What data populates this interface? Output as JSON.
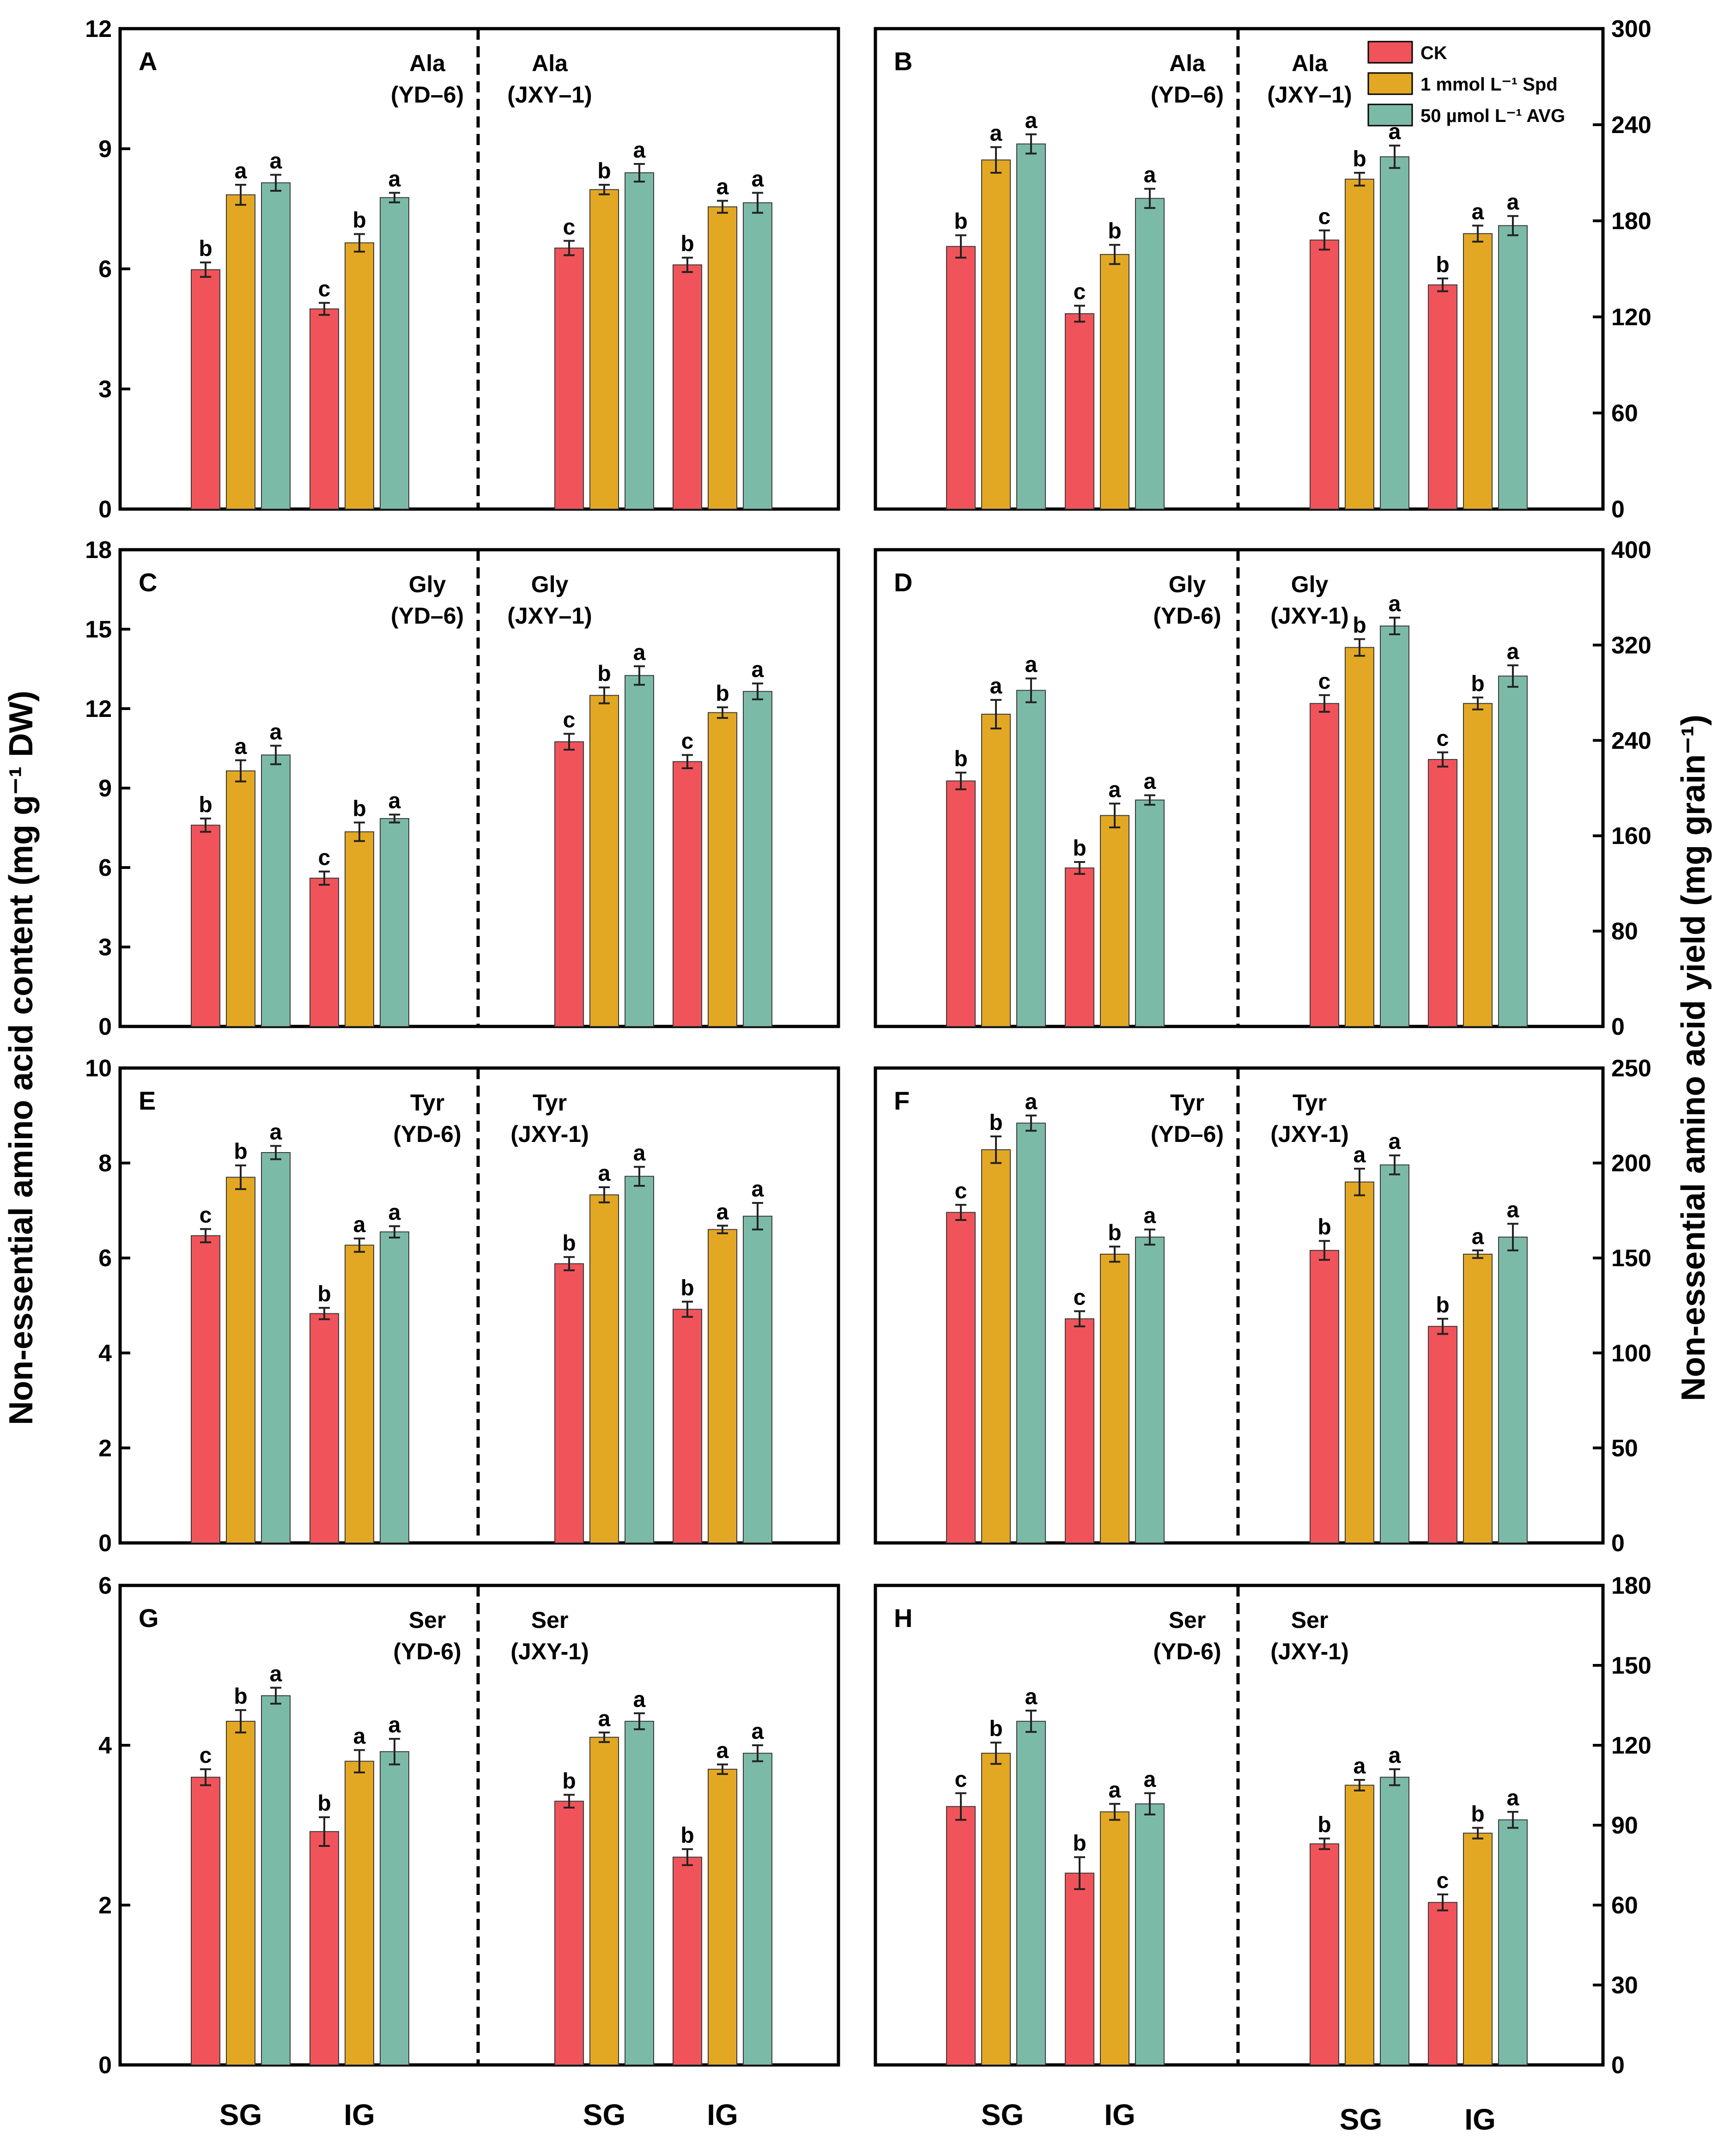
{
  "figure": {
    "ylabel_left": "Non-essential amino acid content (mg g⁻¹ DW)",
    "ylabel_right": "Non-essential amino acid yield (mg grain⁻¹)",
    "group_labels": [
      "SG",
      "IG"
    ]
  },
  "legend": {
    "entries": [
      {
        "label": "CK",
        "color": "#F0545A"
      },
      {
        "label": "1 mmol L⁻¹ Spd",
        "color": "#E3A823"
      },
      {
        "label": "50 µmol L⁻¹ AVG",
        "color": "#7CBAA8"
      }
    ]
  },
  "chart_data": [
    {
      "type": "bar",
      "panel": "A",
      "axis_side": "left",
      "ylim": [
        0,
        12
      ],
      "yticks": [
        "0",
        "3",
        "6",
        "9",
        "12"
      ],
      "halves": [
        {
          "annotation_line1": "Ala",
          "annotation_line2": "(YD–6)",
          "groups": [
            {
              "name": "SG",
              "values": [
                5.98,
                7.85,
                8.15
              ],
              "errors": [
                0.18,
                0.25,
                0.2
              ],
              "sig": [
                "b",
                "a",
                "a"
              ]
            },
            {
              "name": "IG",
              "values": [
                5.0,
                6.65,
                7.78
              ],
              "errors": [
                0.15,
                0.22,
                0.12
              ],
              "sig": [
                "c",
                "b",
                "a"
              ]
            }
          ]
        },
        {
          "annotation_line1": "Ala",
          "annotation_line2": "(JXY–1)",
          "groups": [
            {
              "name": "SG",
              "values": [
                6.52,
                7.98,
                8.4
              ],
              "errors": [
                0.18,
                0.12,
                0.22
              ],
              "sig": [
                "c",
                "b",
                "a"
              ]
            },
            {
              "name": "IG",
              "values": [
                6.1,
                7.55,
                7.65
              ],
              "errors": [
                0.18,
                0.15,
                0.25
              ],
              "sig": [
                "b",
                "a",
                "a"
              ]
            }
          ]
        }
      ]
    },
    {
      "type": "bar",
      "panel": "B",
      "axis_side": "right",
      "ylim": [
        0,
        300
      ],
      "yticks": [
        "0",
        "60",
        "120",
        "180",
        "240",
        "300"
      ],
      "halves": [
        {
          "annotation_line1": "Ala",
          "annotation_line2": "(YD–6)",
          "groups": [
            {
              "name": "SG",
              "values": [
                164,
                218,
                228
              ],
              "errors": [
                7,
                8,
                6
              ],
              "sig": [
                "b",
                "a",
                "a"
              ]
            },
            {
              "name": "IG",
              "values": [
                122,
                159,
                194
              ],
              "errors": [
                5,
                6,
                6
              ],
              "sig": [
                "c",
                "b",
                "a"
              ]
            }
          ]
        },
        {
          "annotation_line1": "Ala",
          "annotation_line2": "(JXY–1)",
          "groups": [
            {
              "name": "SG",
              "values": [
                168,
                206,
                220
              ],
              "errors": [
                6,
                4,
                7
              ],
              "sig": [
                "c",
                "b",
                "a"
              ]
            },
            {
              "name": "IG",
              "values": [
                140,
                172,
                177
              ],
              "errors": [
                4,
                5,
                6
              ],
              "sig": [
                "b",
                "a",
                "a"
              ]
            }
          ]
        }
      ]
    },
    {
      "type": "bar",
      "panel": "C",
      "axis_side": "left",
      "ylim": [
        0,
        18
      ],
      "yticks": [
        "0",
        "3",
        "6",
        "9",
        "12",
        "15",
        "18"
      ],
      "halves": [
        {
          "annotation_line1": "Gly",
          "annotation_line2": "(YD–6)",
          "groups": [
            {
              "name": "SG",
              "values": [
                7.6,
                9.65,
                10.25
              ],
              "errors": [
                0.25,
                0.4,
                0.35
              ],
              "sig": [
                "b",
                "a",
                "a"
              ]
            },
            {
              "name": "IG",
              "values": [
                5.6,
                7.35,
                7.85
              ],
              "errors": [
                0.25,
                0.35,
                0.15
              ],
              "sig": [
                "c",
                "b",
                "a"
              ]
            }
          ]
        },
        {
          "annotation_line1": "Gly",
          "annotation_line2": "(JXY–1)",
          "groups": [
            {
              "name": "SG",
              "values": [
                10.75,
                12.5,
                13.25
              ],
              "errors": [
                0.3,
                0.3,
                0.35
              ],
              "sig": [
                "c",
                "b",
                "a"
              ]
            },
            {
              "name": "IG",
              "values": [
                10.0,
                11.85,
                12.65
              ],
              "errors": [
                0.25,
                0.2,
                0.3
              ],
              "sig": [
                "c",
                "b",
                "a"
              ]
            }
          ]
        }
      ]
    },
    {
      "type": "bar",
      "panel": "D",
      "axis_side": "right",
      "ylim": [
        0,
        400
      ],
      "yticks": [
        "0",
        "80",
        "160",
        "240",
        "320",
        "400"
      ],
      "halves": [
        {
          "annotation_line1": "Gly",
          "annotation_line2": "(YD-6)",
          "groups": [
            {
              "name": "SG",
              "values": [
                206,
                262,
                282
              ],
              "errors": [
                7,
                12,
                10
              ],
              "sig": [
                "b",
                "a",
                "a"
              ]
            },
            {
              "name": "IG",
              "values": [
                133,
                177,
                190
              ],
              "errors": [
                5,
                10,
                4
              ],
              "sig": [
                "b",
                "a",
                "a"
              ]
            }
          ]
        },
        {
          "annotation_line1": "Gly",
          "annotation_line2": "(JXY-1)",
          "groups": [
            {
              "name": "SG",
              "values": [
                271,
                318,
                336
              ],
              "errors": [
                7,
                7,
                7
              ],
              "sig": [
                "c",
                "b",
                "a"
              ]
            },
            {
              "name": "IG",
              "values": [
                224,
                271,
                294
              ],
              "errors": [
                6,
                5,
                9
              ],
              "sig": [
                "c",
                "b",
                "a"
              ]
            }
          ]
        }
      ]
    },
    {
      "type": "bar",
      "panel": "E",
      "axis_side": "left",
      "ylim": [
        0,
        10
      ],
      "yticks": [
        "0",
        "2",
        "4",
        "6",
        "8",
        "10"
      ],
      "halves": [
        {
          "annotation_line1": "Tyr",
          "annotation_line2": "(YD-6)",
          "groups": [
            {
              "name": "SG",
              "values": [
                6.47,
                7.7,
                8.22
              ],
              "errors": [
                0.14,
                0.25,
                0.14
              ],
              "sig": [
                "c",
                "b",
                "a"
              ]
            },
            {
              "name": "IG",
              "values": [
                4.83,
                6.27,
                6.55
              ],
              "errors": [
                0.12,
                0.14,
                0.12
              ],
              "sig": [
                "b",
                "a",
                "a"
              ]
            }
          ]
        },
        {
          "annotation_line1": "Tyr",
          "annotation_line2": "(JXY-1)",
          "groups": [
            {
              "name": "SG",
              "values": [
                5.88,
                7.33,
                7.72
              ],
              "errors": [
                0.14,
                0.16,
                0.2
              ],
              "sig": [
                "b",
                "a",
                "a"
              ]
            },
            {
              "name": "IG",
              "values": [
                4.92,
                6.6,
                6.88
              ],
              "errors": [
                0.16,
                0.08,
                0.28
              ],
              "sig": [
                "b",
                "a",
                "a"
              ]
            }
          ]
        }
      ]
    },
    {
      "type": "bar",
      "panel": "F",
      "axis_side": "right",
      "ylim": [
        0,
        250
      ],
      "yticks": [
        "0",
        "50",
        "100",
        "150",
        "200",
        "250"
      ],
      "halves": [
        {
          "annotation_line1": "Tyr",
          "annotation_line2": "(YD–6)",
          "groups": [
            {
              "name": "SG",
              "values": [
                174,
                207,
                221
              ],
              "errors": [
                4,
                7,
                4
              ],
              "sig": [
                "c",
                "b",
                "a"
              ]
            },
            {
              "name": "IG",
              "values": [
                118,
                152,
                161
              ],
              "errors": [
                4,
                4,
                4
              ],
              "sig": [
                "c",
                "b",
                "a"
              ]
            }
          ]
        },
        {
          "annotation_line1": "Tyr",
          "annotation_line2": "(JXY-1)",
          "groups": [
            {
              "name": "SG",
              "values": [
                154,
                190,
                199
              ],
              "errors": [
                5,
                7,
                5
              ],
              "sig": [
                "b",
                "a",
                "a"
              ]
            },
            {
              "name": "IG",
              "values": [
                114,
                152,
                161
              ],
              "errors": [
                4,
                2,
                7
              ],
              "sig": [
                "b",
                "a",
                "a"
              ]
            }
          ]
        }
      ]
    },
    {
      "type": "bar",
      "panel": "G",
      "axis_side": "left",
      "ylim": [
        0,
        6
      ],
      "yticks": [
        "0",
        "2",
        "4",
        "6"
      ],
      "halves": [
        {
          "annotation_line1": "Ser",
          "annotation_line2": "(YD-6)",
          "groups": [
            {
              "name": "SG",
              "values": [
                3.6,
                4.3,
                4.62
              ],
              "errors": [
                0.1,
                0.14,
                0.1
              ],
              "sig": [
                "c",
                "b",
                "a"
              ]
            },
            {
              "name": "IG",
              "values": [
                2.92,
                3.8,
                3.92
              ],
              "errors": [
                0.18,
                0.14,
                0.16
              ],
              "sig": [
                "b",
                "a",
                "a"
              ]
            }
          ]
        },
        {
          "annotation_line1": "Ser",
          "annotation_line2": "(JXY-1)",
          "groups": [
            {
              "name": "SG",
              "values": [
                3.3,
                4.1,
                4.3
              ],
              "errors": [
                0.08,
                0.06,
                0.1
              ],
              "sig": [
                "b",
                "a",
                "a"
              ]
            },
            {
              "name": "IG",
              "values": [
                2.6,
                3.7,
                3.9
              ],
              "errors": [
                0.1,
                0.06,
                0.1
              ],
              "sig": [
                "b",
                "a",
                "a"
              ]
            }
          ]
        }
      ]
    },
    {
      "type": "bar",
      "panel": "H",
      "axis_side": "right",
      "ylim": [
        0,
        180
      ],
      "yticks": [
        "0",
        "30",
        "60",
        "90",
        "120",
        "150",
        "180"
      ],
      "halves": [
        {
          "annotation_line1": "Ser",
          "annotation_line2": "(YD-6)",
          "groups": [
            {
              "name": "SG",
              "values": [
                97,
                117,
                129
              ],
              "errors": [
                5,
                4,
                4
              ],
              "sig": [
                "c",
                "b",
                "a"
              ]
            },
            {
              "name": "IG",
              "values": [
                72,
                95,
                98
              ],
              "errors": [
                6,
                3,
                4
              ],
              "sig": [
                "b",
                "a",
                "a"
              ]
            }
          ]
        },
        {
          "annotation_line1": "Ser",
          "annotation_line2": "(JXY-1)",
          "groups": [
            {
              "name": "SG",
              "values": [
                83,
                105,
                108
              ],
              "errors": [
                2,
                2,
                3
              ],
              "sig": [
                "b",
                "a",
                "a"
              ]
            },
            {
              "name": "IG",
              "values": [
                61,
                87,
                92
              ],
              "errors": [
                3,
                2,
                3
              ],
              "sig": [
                "c",
                "b",
                "a"
              ]
            }
          ]
        }
      ]
    }
  ]
}
